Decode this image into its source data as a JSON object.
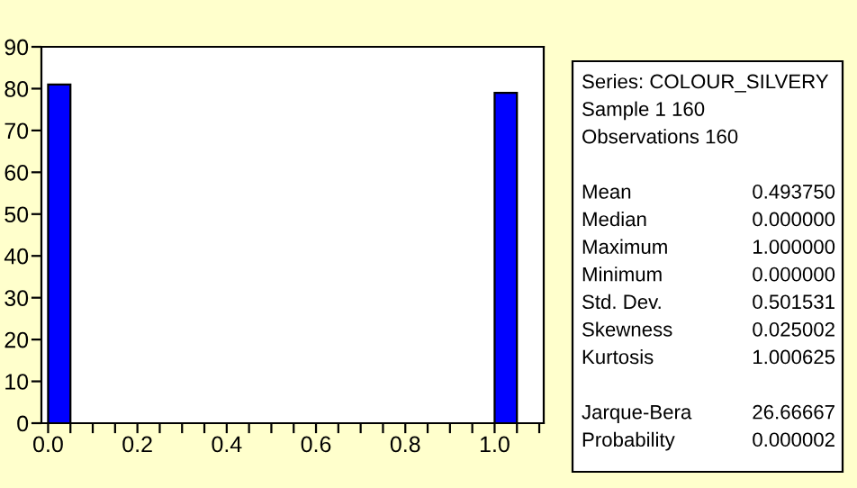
{
  "chart_data": {
    "type": "histogram",
    "bins": [
      0,
      0.05,
      0.1,
      0.15,
      0.2,
      0.25,
      0.3,
      0.35,
      0.4,
      0.45,
      0.5,
      0.55,
      0.6,
      0.65,
      0.7,
      0.75,
      0.8,
      0.85,
      0.9,
      0.95,
      1.0,
      1.05
    ],
    "values": [
      81,
      0,
      0,
      0,
      0,
      0,
      0,
      0,
      0,
      0,
      0,
      0,
      0,
      0,
      0,
      0,
      0,
      0,
      0,
      0,
      79
    ],
    "color": "#0000ff",
    "xlim": [
      -0.015,
      1.11
    ],
    "xticks": [
      {
        "value": 0.0,
        "label": "0.0"
      },
      {
        "value": 0.05,
        "label": null
      },
      {
        "value": 0.1,
        "label": null
      },
      {
        "value": 0.15,
        "label": null
      },
      {
        "value": 0.2,
        "label": "0.2"
      },
      {
        "value": 0.25,
        "label": null
      },
      {
        "value": 0.3,
        "label": null
      },
      {
        "value": 0.35,
        "label": null
      },
      {
        "value": 0.4,
        "label": "0.4"
      },
      {
        "value": 0.45,
        "label": null
      },
      {
        "value": 0.5,
        "label": null
      },
      {
        "value": 0.55,
        "label": null
      },
      {
        "value": 0.6,
        "label": "0.6"
      },
      {
        "value": 0.65,
        "label": null
      },
      {
        "value": 0.7,
        "label": null
      },
      {
        "value": 0.75,
        "label": null
      },
      {
        "value": 0.8,
        "label": "0.8"
      },
      {
        "value": 0.85,
        "label": null
      },
      {
        "value": 0.9,
        "label": null
      },
      {
        "value": 0.95,
        "label": null
      },
      {
        "value": 1.0,
        "label": "1.0"
      },
      {
        "value": 1.05,
        "label": null
      },
      {
        "value": 1.1,
        "label": null
      }
    ],
    "ylim": [
      0,
      90
    ],
    "yticks": [
      0,
      10,
      20,
      30,
      40,
      50,
      60,
      70,
      80,
      90
    ],
    "grid": false,
    "annotations": [
      "Series: COLOUR_SILVERY",
      "Sample 1 160",
      "Observations 160",
      "Mean",
      "0.493750",
      "Median",
      "0.000000",
      "Maximum",
      "1.000000",
      "Minimum",
      "0.000000",
      "Std. Dev.",
      "0.501531",
      "Skewness",
      "0.025002",
      "Kurtosis",
      "1.000625",
      "Jarque-Bera",
      "26.66667",
      "Probability",
      "0.000002"
    ]
  }
}
